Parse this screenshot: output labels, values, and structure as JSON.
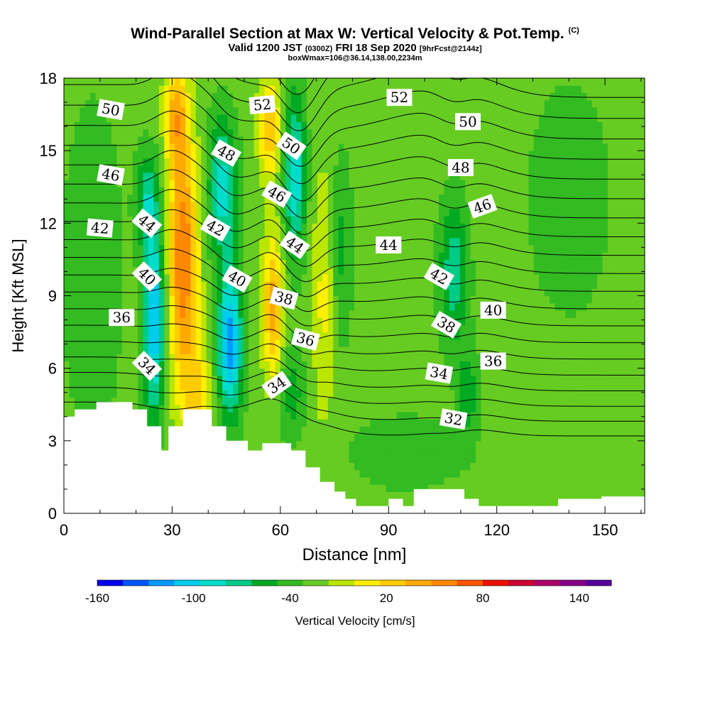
{
  "header": {
    "title": "Wind-Parallel Section at Max W: Vertical Velocity & Pot.Temp.",
    "copyright": "(C)",
    "valid_prefix": "Valid 1200 JST",
    "valid_utc": "(0300Z)",
    "valid_date": "FRI 18 Sep 2020",
    "forecast": "[9hrFcst@2144z]",
    "box_info": "boxWmax=106@36.14,138.00,2234m"
  },
  "colors": {
    "palette": [
      "#0000ee",
      "#0055ff",
      "#0099ff",
      "#00ccee",
      "#00ddcc",
      "#00cc88",
      "#00aa22",
      "#33bb22",
      "#66cc22",
      "#bbe600",
      "#ffee00",
      "#ffcc00",
      "#ffaa00",
      "#ff8800",
      "#ff5500",
      "#ee1100",
      "#cc0033",
      "#aa0066",
      "#880088",
      "#550099"
    ],
    "terrain": "#ffffff",
    "contour": "#000000"
  },
  "chart_data": {
    "type": "heatmap",
    "title": "Wind-Parallel Section at Max W: Vertical Velocity & Pot.Temp.",
    "xlabel": "Distance [nm]",
    "ylabel": "Height [Kft MSL]",
    "xlim": [
      0,
      161
    ],
    "ylim": [
      0,
      18
    ],
    "xticks": [
      0,
      30,
      60,
      90,
      120,
      150
    ],
    "yticks": [
      0,
      3,
      6,
      9,
      12,
      15,
      18
    ],
    "colorbar": {
      "label": "Vertical Velocity [cm/s]",
      "min": -160,
      "max": 160,
      "step": 20,
      "tick_labels": [
        "-160",
        "-100",
        "-40",
        "20",
        "80",
        "140"
      ],
      "tick_values": [
        -160,
        -100,
        -40,
        20,
        80,
        140
      ]
    },
    "background_value": 10,
    "velocity_features": [
      {
        "x": 33,
        "y": 10.5,
        "sx": 4,
        "sy": 5.0,
        "amp": 110
      },
      {
        "x": 31,
        "y": 16.5,
        "sx": 3,
        "sy": 2.0,
        "amp": 70
      },
      {
        "x": 37,
        "y": 5.0,
        "sx": 4,
        "sy": 2.0,
        "amp": 50
      },
      {
        "x": 25,
        "y": 8.0,
        "sx": 3,
        "sy": 4.0,
        "amp": -110
      },
      {
        "x": 23,
        "y": 13.0,
        "sx": 3,
        "sy": 2.0,
        "amp": -60
      },
      {
        "x": 46,
        "y": 7.0,
        "sx": 3.5,
        "sy": 3.0,
        "amp": -120
      },
      {
        "x": 44,
        "y": 13.5,
        "sx": 4,
        "sy": 3.0,
        "amp": -80
      },
      {
        "x": 58,
        "y": 8.5,
        "sx": 2.8,
        "sy": 3.0,
        "amp": 80
      },
      {
        "x": 57,
        "y": 16.0,
        "sx": 3,
        "sy": 2.0,
        "amp": 70
      },
      {
        "x": 64,
        "y": 14.0,
        "sx": 3,
        "sy": 3.5,
        "amp": -90
      },
      {
        "x": 63,
        "y": 5.0,
        "sx": 4,
        "sy": 2.0,
        "amp": -40
      },
      {
        "x": 72,
        "y": 9.0,
        "sx": 3,
        "sy": 5.0,
        "amp": 35
      },
      {
        "x": 108,
        "y": 10.0,
        "sx": 4,
        "sy": 3.0,
        "amp": -65
      },
      {
        "x": 112,
        "y": 5.0,
        "sx": 3,
        "sy": 2.0,
        "amp": -40
      },
      {
        "x": 8,
        "y": 10.0,
        "sx": 8,
        "sy": 7.0,
        "amp": -30
      },
      {
        "x": 95,
        "y": 2.5,
        "sx": 15,
        "sy": 1.5,
        "amp": -30
      },
      {
        "x": 140,
        "y": 13.0,
        "sx": 12,
        "sy": 5.0,
        "amp": -25
      },
      {
        "x": 77,
        "y": 11.0,
        "sx": 3,
        "sy": 4.0,
        "amp": -35
      }
    ],
    "contour_levels": [
      31,
      32,
      33,
      34,
      35,
      36,
      37,
      38,
      39,
      40,
      41,
      42,
      43,
      44,
      45,
      46,
      47,
      48,
      49,
      50,
      51,
      52,
      53,
      54
    ],
    "contour_labels": [
      {
        "text": "50",
        "x": 13,
        "y": 16.7,
        "rot": 10
      },
      {
        "text": "46",
        "x": 13,
        "y": 14.0,
        "rot": 10
      },
      {
        "text": "42",
        "x": 10,
        "y": 11.8,
        "rot": 5
      },
      {
        "text": "44",
        "x": 23,
        "y": 12.0,
        "rot": 40
      },
      {
        "text": "40",
        "x": 23,
        "y": 9.8,
        "rot": 45
      },
      {
        "text": "36",
        "x": 16,
        "y": 8.1,
        "rot": 0
      },
      {
        "text": "34",
        "x": 23,
        "y": 6.1,
        "rot": 45
      },
      {
        "text": "48",
        "x": 45,
        "y": 14.9,
        "rot": 30
      },
      {
        "text": "42",
        "x": 42,
        "y": 11.8,
        "rot": 30
      },
      {
        "text": "40",
        "x": 48,
        "y": 9.7,
        "rot": 30
      },
      {
        "text": "52",
        "x": 55,
        "y": 16.9,
        "rot": -5
      },
      {
        "text": "50",
        "x": 63,
        "y": 15.2,
        "rot": 35
      },
      {
        "text": "46",
        "x": 59,
        "y": 13.2,
        "rot": 30
      },
      {
        "text": "44",
        "x": 64,
        "y": 11.1,
        "rot": 35
      },
      {
        "text": "38",
        "x": 61,
        "y": 8.9,
        "rot": 15
      },
      {
        "text": "36",
        "x": 67,
        "y": 7.2,
        "rot": 15
      },
      {
        "text": "34",
        "x": 59,
        "y": 5.3,
        "rot": -35
      },
      {
        "text": "52",
        "x": 93,
        "y": 17.2,
        "rot": 0
      },
      {
        "text": "50",
        "x": 112,
        "y": 16.2,
        "rot": 0
      },
      {
        "text": "48",
        "x": 110,
        "y": 14.3,
        "rot": 0
      },
      {
        "text": "46",
        "x": 116,
        "y": 12.7,
        "rot": -20
      },
      {
        "text": "44",
        "x": 90,
        "y": 11.1,
        "rot": 0
      },
      {
        "text": "42",
        "x": 104,
        "y": 9.8,
        "rot": 30
      },
      {
        "text": "38",
        "x": 106,
        "y": 7.8,
        "rot": 30
      },
      {
        "text": "40",
        "x": 119,
        "y": 8.4,
        "rot": 0
      },
      {
        "text": "34",
        "x": 104,
        "y": 5.8,
        "rot": 10
      },
      {
        "text": "36",
        "x": 119,
        "y": 6.3,
        "rot": 0
      },
      {
        "text": "32",
        "x": 108,
        "y": 3.9,
        "rot": 10
      }
    ],
    "terrain_profile": [
      [
        0,
        4.0
      ],
      [
        3,
        4.0
      ],
      [
        3,
        4.3
      ],
      [
        9,
        4.3
      ],
      [
        9,
        4.6
      ],
      [
        19,
        4.6
      ],
      [
        19,
        4.3
      ],
      [
        23,
        4.3
      ],
      [
        23,
        3.6
      ],
      [
        27,
        3.6
      ],
      [
        27,
        2.6
      ],
      [
        29,
        2.6
      ],
      [
        29,
        3.6
      ],
      [
        33,
        3.6
      ],
      [
        33,
        4.3
      ],
      [
        41,
        4.3
      ],
      [
        41,
        3.6
      ],
      [
        45,
        3.6
      ],
      [
        45,
        3.0
      ],
      [
        51,
        3.0
      ],
      [
        51,
        2.6
      ],
      [
        55,
        2.6
      ],
      [
        55,
        2.9
      ],
      [
        63,
        2.9
      ],
      [
        63,
        2.6
      ],
      [
        67,
        2.6
      ],
      [
        67,
        1.9
      ],
      [
        71,
        1.9
      ],
      [
        71,
        1.3
      ],
      [
        75,
        1.3
      ],
      [
        75,
        0.9
      ],
      [
        78,
        0.9
      ],
      [
        78,
        0.6
      ],
      [
        81,
        0.6
      ],
      [
        81,
        0.3
      ],
      [
        90,
        0.3
      ],
      [
        90,
        0.6
      ],
      [
        94,
        0.6
      ],
      [
        94,
        0.3
      ],
      [
        97,
        0.3
      ],
      [
        97,
        1.0
      ],
      [
        111,
        1.0
      ],
      [
        111,
        0.6
      ],
      [
        115,
        0.6
      ],
      [
        115,
        0.3
      ],
      [
        137,
        0.3
      ],
      [
        137,
        0.6
      ],
      [
        149,
        0.6
      ],
      [
        149,
        0.7
      ],
      [
        161,
        0.7
      ]
    ]
  }
}
